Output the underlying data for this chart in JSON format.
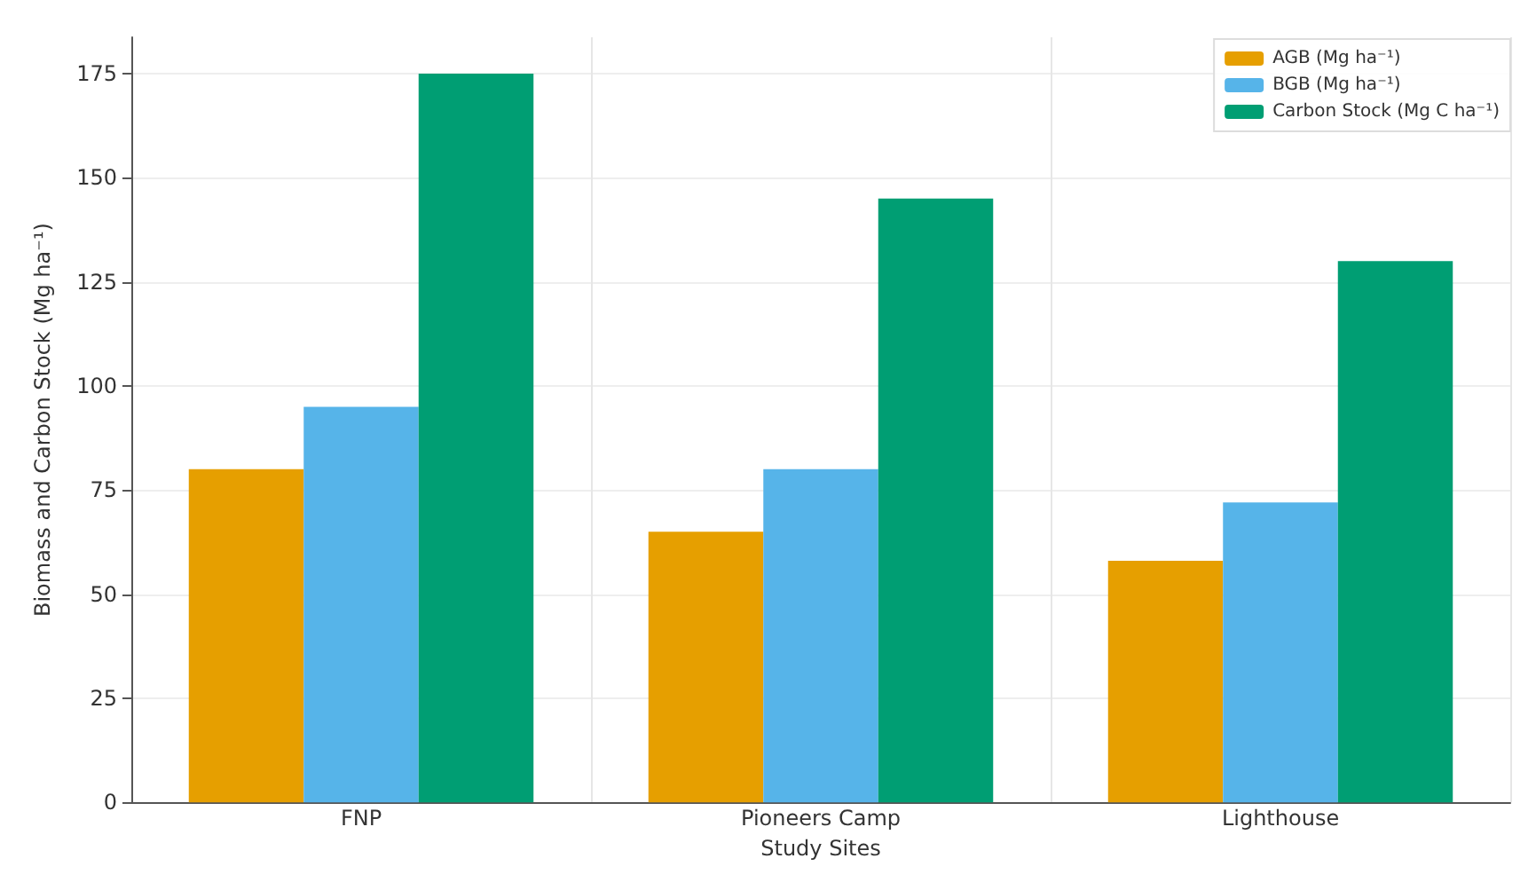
{
  "chart_data": {
    "type": "bar",
    "xlabel": "Study Sites",
    "ylabel": "Biomass and Carbon Stock (Mg ha⁻¹)",
    "categories": [
      "FNP",
      "Pioneers Camp",
      "Lighthouse"
    ],
    "series": [
      {
        "name": "AGB (Mg ha⁻¹)",
        "color": "#e69f00",
        "values": [
          80,
          65,
          58
        ]
      },
      {
        "name": "BGB (Mg ha⁻¹)",
        "color": "#56b4e9",
        "values": [
          95,
          80,
          72
        ]
      },
      {
        "name": "Carbon Stock (Mg C ha⁻¹)",
        "color": "#009e73",
        "values": [
          175,
          145,
          130
        ]
      }
    ],
    "ylim": [
      0,
      183.75
    ],
    "yticks": [
      0,
      25,
      50,
      75,
      100,
      125,
      150,
      175
    ],
    "grid": true,
    "legend": "top right"
  }
}
